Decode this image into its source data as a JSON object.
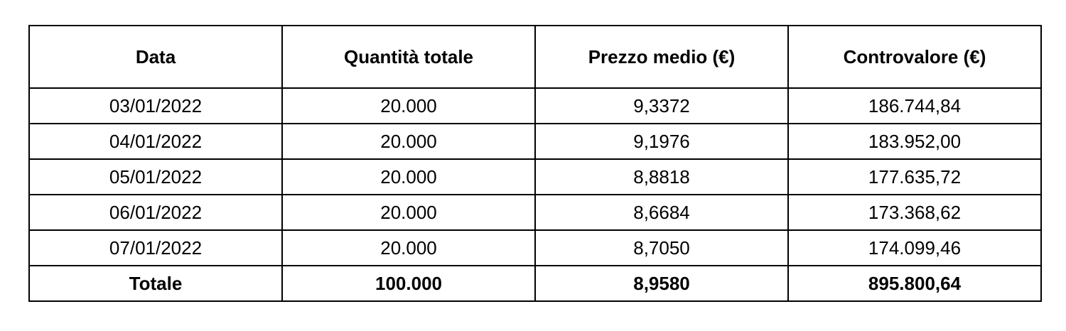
{
  "table": {
    "columns": [
      "Data",
      "Quantità totale",
      "Prezzo medio (€)",
      "Controvalore (€)"
    ],
    "rows": [
      [
        "03/01/2022",
        "20.000",
        "9,3372",
        "186.744,84"
      ],
      [
        "04/01/2022",
        "20.000",
        "9,1976",
        "183.952,00"
      ],
      [
        "05/01/2022",
        "20.000",
        "8,8818",
        "177.635,72"
      ],
      [
        "06/01/2022",
        "20.000",
        "8,6684",
        "173.368,62"
      ],
      [
        "07/01/2022",
        "20.000",
        "8,7050",
        "174.099,46"
      ]
    ],
    "total_row": [
      "Totale",
      "100.000",
      "8,9580",
      "895.800,64"
    ],
    "colors": {
      "border": "#000000",
      "text": "#000000",
      "background": "#ffffff"
    }
  }
}
